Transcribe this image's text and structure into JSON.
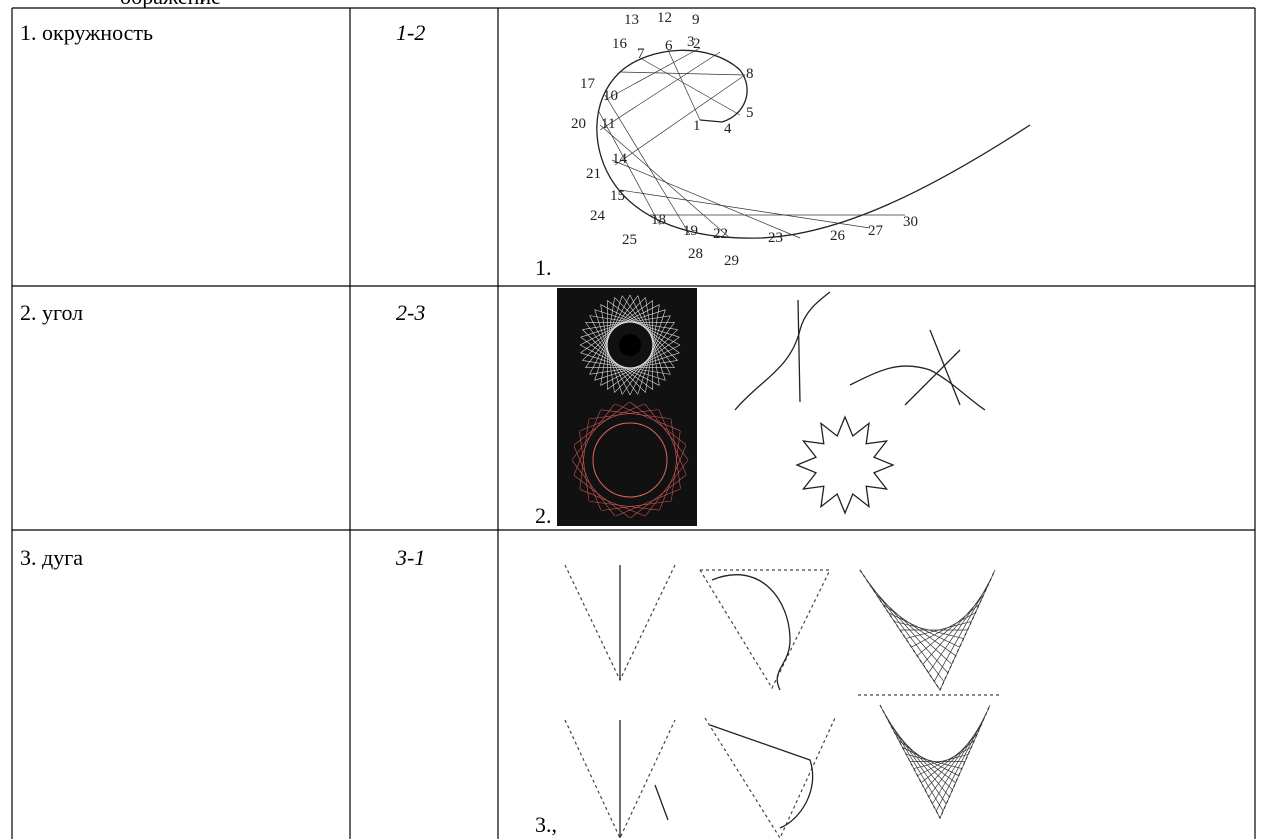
{
  "header_fragment": "ображение",
  "table": {
    "rows": [
      [
        "1. окружность",
        "1-2",
        "1."
      ],
      [
        "2.  угол",
        "2-3",
        "2."
      ],
      [
        "3.  дуга",
        "3-1",
        "3.,"
      ]
    ]
  },
  "figure_1_labels": [
    "1",
    "2",
    "3",
    "4",
    "5",
    "6",
    "7",
    "8",
    "9",
    "10",
    "11",
    "12",
    "13",
    "14",
    "15",
    "16",
    "17",
    "18",
    "19",
    "20",
    "21",
    "22",
    "23",
    "24",
    "25",
    "26",
    "27",
    "28",
    "29",
    "30"
  ]
}
